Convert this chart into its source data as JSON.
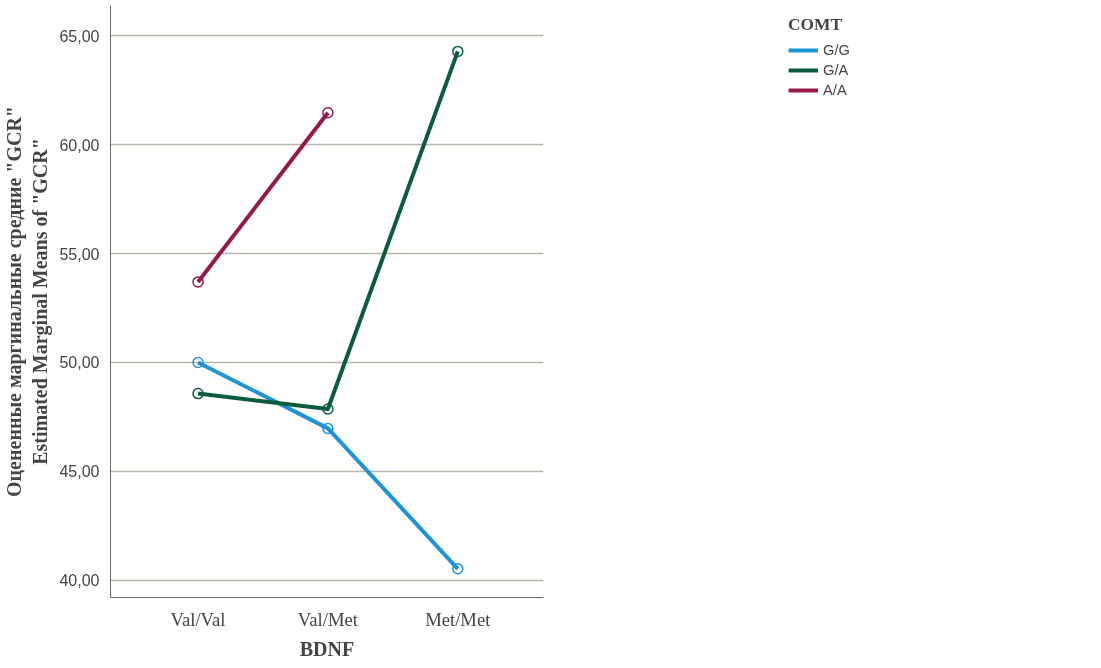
{
  "chart_data": {
    "type": "line",
    "xlabel": "BDNF",
    "ylabel": "Оцененные маргинальные средние \"GCR\"\nEstimated Marginal Means of \"GCR\"",
    "legend_title": "COMT",
    "categories": [
      "Val/Val",
      "Val/Met",
      "Met/Met"
    ],
    "series": [
      {
        "name": "G/G",
        "color": "#1f93d8",
        "values": [
          50.0,
          46.97,
          40.52
        ]
      },
      {
        "name": "G/A",
        "color": "#0b5c3c",
        "values": [
          48.57,
          47.86,
          64.29
        ]
      },
      {
        "name": "A/A",
        "color": "#97194a",
        "values": [
          53.7,
          61.47,
          null
        ]
      }
    ],
    "ylim": [
      39.2,
      66.4
    ],
    "yticks": [
      {
        "value": 40,
        "label": "40,00"
      },
      {
        "value": 45,
        "label": "45,00"
      },
      {
        "value": 50,
        "label": "50,00"
      },
      {
        "value": 55,
        "label": "55,00"
      },
      {
        "value": 60,
        "label": "60,00"
      },
      {
        "value": 65,
        "label": "65,00"
      }
    ],
    "grid": "y",
    "legend": "top right",
    "marker": "circle",
    "line_style": "solid"
  }
}
